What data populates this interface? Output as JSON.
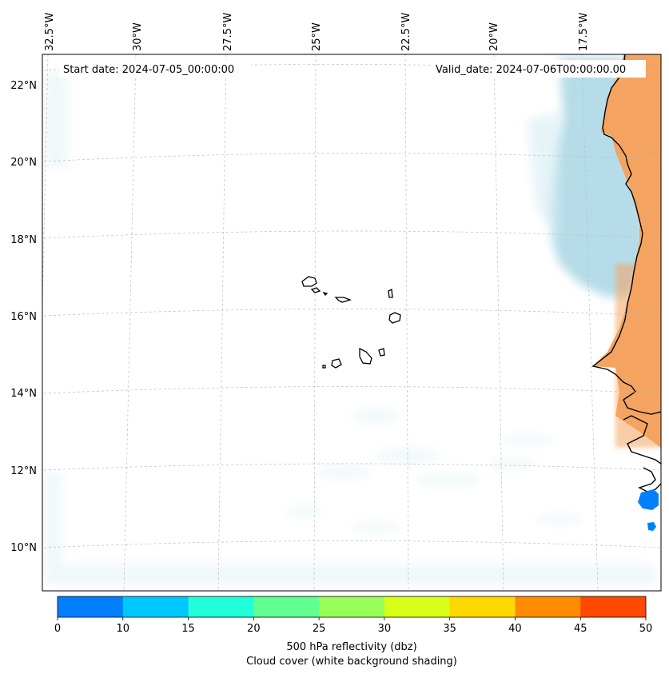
{
  "map": {
    "start_date": "Start date: 2024-07-05_00:00:00",
    "valid_date": "Valid_date: 2024-07-06T00:00:00.00",
    "lon_labels": [
      "32.5°W",
      "30°W",
      "27.5°W",
      "25°W",
      "22.5°W",
      "20°W",
      "17.5°W"
    ],
    "lat_labels": [
      "22°N",
      "20°N",
      "18°N",
      "16°N",
      "14°N",
      "12°N",
      "10°N"
    ],
    "land_color": "#f4a460",
    "cloud_color": "#add8e6",
    "echo_color": "#0080ff"
  },
  "colorbar": {
    "ticks": [
      "0",
      "10",
      "15",
      "20",
      "25",
      "30",
      "35",
      "40",
      "45",
      "50"
    ],
    "colors": [
      "#0080ff",
      "#00c8ff",
      "#20ffd8",
      "#60ff90",
      "#98ff58",
      "#d8ff18",
      "#ffd800",
      "#ff8c00",
      "#ff4800"
    ],
    "label_line1": "500 hPa reflectivity (dbz)",
    "label_line2": "Cloud cover (white background shading)"
  }
}
